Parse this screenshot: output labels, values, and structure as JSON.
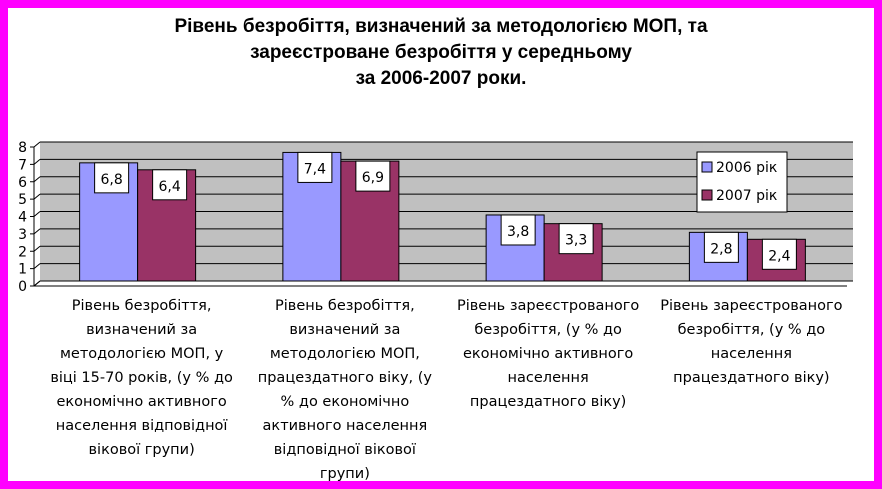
{
  "chart_data": {
    "type": "bar",
    "title_lines": [
      "Рівень безробіття, визначений за методологією МОП, та",
      "зареєстроване безробіття у середньому",
      "за 2006-2007 роки."
    ],
    "categories": [
      [
        "Рівень безробіття,",
        "визначений за",
        "методологією МОП, у",
        "віці 15-70 років, (у % до",
        "економічно активного",
        "населення відповідної",
        "вікової групи)"
      ],
      [
        "Рівень безробіття,",
        "визначений за",
        "методологією МОП,",
        "працездатного віку, (у",
        "% до економічно",
        "активного населення",
        "відповідної вікової",
        "групи)"
      ],
      [
        "Рівень зареєстрованого",
        "безробіття, (у % до",
        "економічно активного",
        "населення",
        "працездатного віку)"
      ],
      [
        "Рівень зареєстрованого",
        "безробіття, (у % до",
        "населення",
        "працездатного віку)"
      ]
    ],
    "series": [
      {
        "name": "2006 рік",
        "values": [
          6.8,
          7.4,
          3.8,
          2.8
        ],
        "labels": [
          "6,8",
          "7,4",
          "3,8",
          "2,8"
        ],
        "color": "#9999ff"
      },
      {
        "name": "2007 рік",
        "values": [
          6.4,
          6.9,
          3.3,
          2.4
        ],
        "labels": [
          "6,4",
          "6,9",
          "3,3",
          "2,4"
        ],
        "color": "#993366"
      }
    ],
    "y_ticks": [
      "0",
      "1",
      "2",
      "3",
      "4",
      "5",
      "6",
      "7",
      "8"
    ],
    "ylim": [
      0,
      8
    ],
    "grid": true,
    "plot_background": "#c0c0c0",
    "legend_position": "right"
  }
}
